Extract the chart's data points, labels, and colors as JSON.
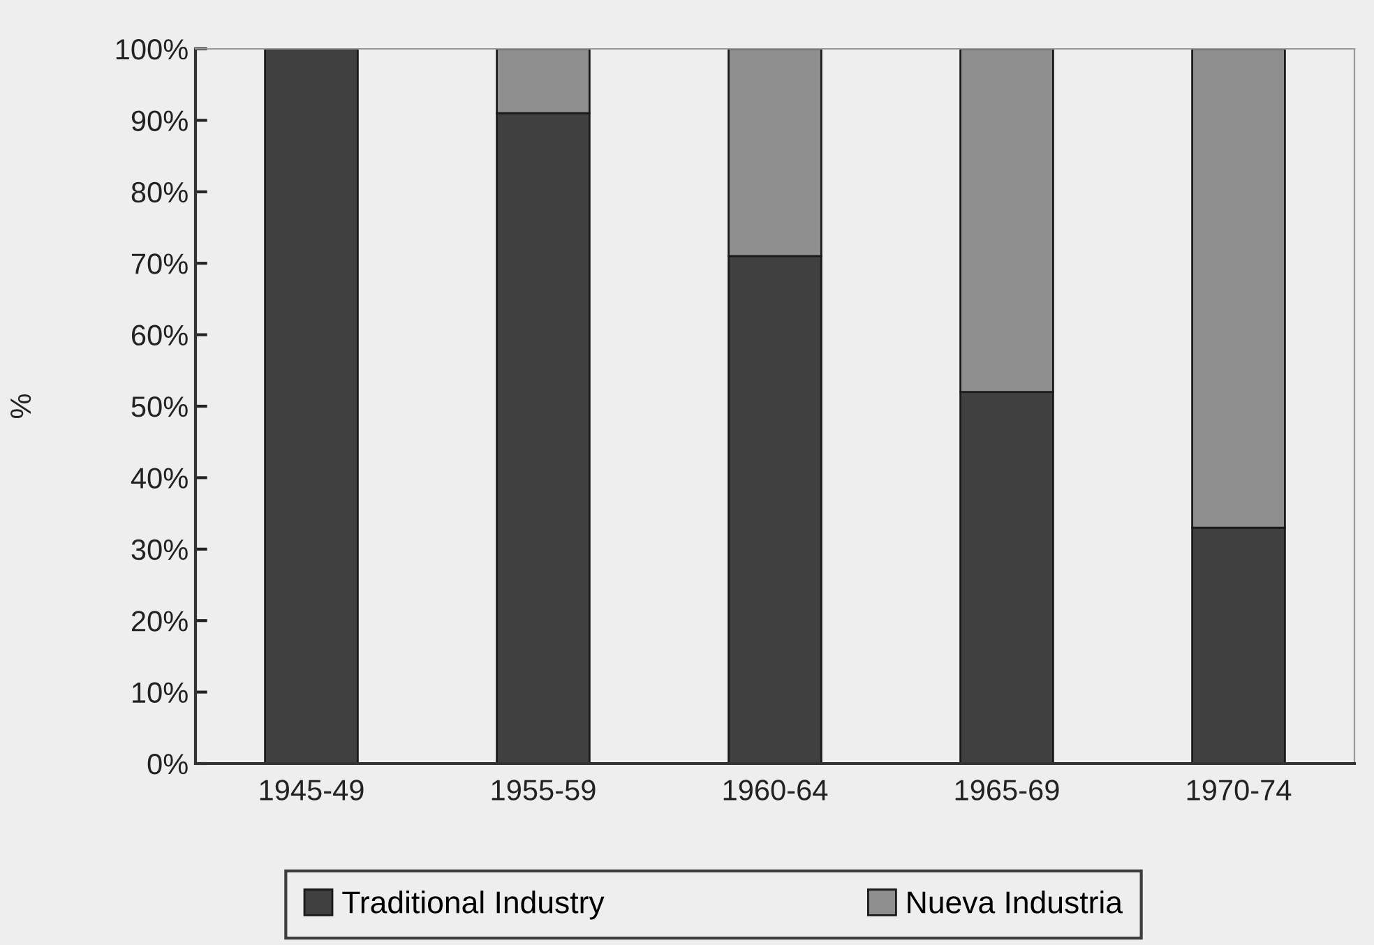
{
  "chart_data": {
    "type": "bar",
    "stacked": true,
    "ylabel": "%",
    "categories": [
      "1945-49",
      "1955-59",
      "1960-64",
      "1965-69",
      "1970-74"
    ],
    "series": [
      {
        "name": "Traditional Industry",
        "color": "#404040",
        "values": [
          100,
          91,
          71,
          52,
          33
        ]
      },
      {
        "name": "Nueva Industria",
        "color": "#8f8f8f",
        "values": [
          0,
          9,
          29,
          48,
          67
        ]
      }
    ],
    "ylim": [
      0,
      100
    ],
    "yticks": [
      {
        "value": 0,
        "label": "0%"
      },
      {
        "value": 10,
        "label": "10%"
      },
      {
        "value": 20,
        "label": "20%"
      },
      {
        "value": 30,
        "label": "30%"
      },
      {
        "value": 40,
        "label": "40%"
      },
      {
        "value": 50,
        "label": "50%"
      },
      {
        "value": 60,
        "label": "60%"
      },
      {
        "value": 70,
        "label": "70%"
      },
      {
        "value": 80,
        "label": "80%"
      },
      {
        "value": 90,
        "label": "90%"
      },
      {
        "value": 100,
        "label": "100%"
      }
    ],
    "legend": "bottom"
  }
}
